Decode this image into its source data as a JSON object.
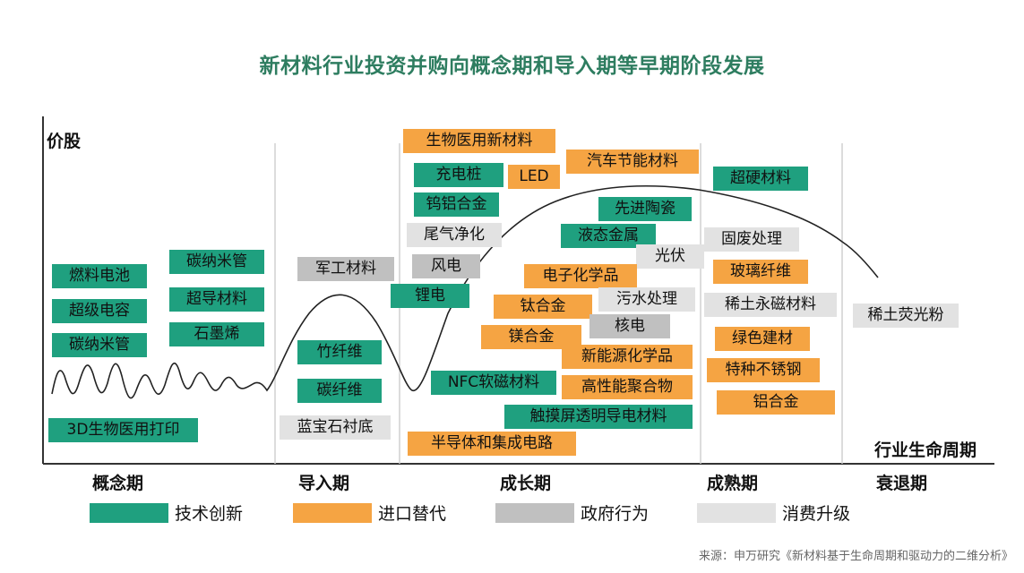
{
  "title": "新材料行业投资并购向概念期和导入期等早期阶段发展",
  "y_axis_label": "价股",
  "x_axis_label": "行业生命周期",
  "stages": [
    "概念期",
    "导入期",
    "成长期",
    "成熟期",
    "衰退期"
  ],
  "legend": [
    {
      "label": "技术创新",
      "color": "#1fa07f"
    },
    {
      "label": "进口替代",
      "color": "#f5a443"
    },
    {
      "label": "政府行为",
      "color": "#c0c0c0"
    },
    {
      "label": "消费升级",
      "color": "#e2e2e2"
    }
  ],
  "stage_items": {
    "concept": [
      "燃料电池",
      "超级电容",
      "碳纳米管",
      "碳纳米管",
      "超导材料",
      "石墨烯",
      "3D生物医用打印"
    ],
    "intro": [
      "军工材料",
      "竹纤维",
      "碳纤维",
      "蓝宝石衬底"
    ],
    "growth": [
      "生物医用新材料",
      "充电桩",
      "LED",
      "汽车节能材料",
      "钨铝合金",
      "先进陶瓷",
      "尾气净化",
      "液态金属",
      "风电",
      "光伏",
      "锂电",
      "电子化学品",
      "钛合金",
      "污水处理",
      "核电",
      "镁合金",
      "新能源化学品",
      "NFC软磁材料",
      "高性能聚合物",
      "触摸屏透明导电材料",
      "半导体和集成电路"
    ],
    "mature": [
      "超硬材料",
      "固废处理",
      "玻璃纤维",
      "稀土永磁材料",
      "绿色建材",
      "特种不锈钢",
      "铝合金"
    ],
    "decline": [
      "稀土荧光粉"
    ]
  },
  "source": "来源：申万研究《新材料基于生命周期和驱动力的二维分析》"
}
